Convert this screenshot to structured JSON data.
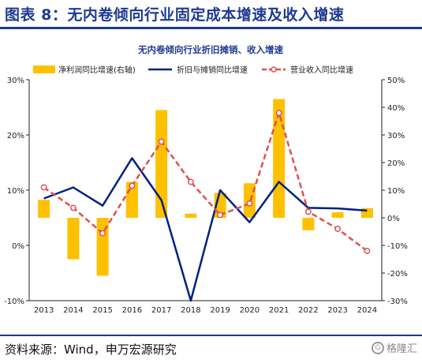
{
  "figure": {
    "title": "图表 8：无内卷倾向行业固定成本增速及收入增速",
    "source": "资料来源：Wind，申万宏源研究",
    "watermark": "格隆汇"
  },
  "colors": {
    "bar": "#FFC000",
    "line": "#002082",
    "dashed": "#E05050",
    "title_blue": "#1F3A93"
  },
  "chart_data": {
    "type": "bar+line",
    "title": "无内卷倾向行业折旧摊销、收入增速",
    "categories": [
      "2013",
      "2014",
      "2015",
      "2016",
      "2017",
      "2018",
      "2019",
      "2020",
      "2021",
      "2022",
      "2023",
      "2024"
    ],
    "left_axis": {
      "ylim": [
        -10,
        30
      ],
      "ticks": [
        "-10%",
        "0%",
        "10%",
        "20%",
        "30%"
      ]
    },
    "right_axis": {
      "ylim": [
        -30,
        50
      ],
      "ticks": [
        "-30%",
        "-20%",
        "-10%",
        "0%",
        "10%",
        "20%",
        "30%",
        "40%",
        "50%"
      ]
    },
    "series": [
      {
        "name": "净利润同比增速(右轴)",
        "kind": "bar",
        "axis": "right",
        "values": [
          6.5,
          -15,
          -21,
          13,
          39,
          1.5,
          9,
          12.5,
          43,
          -4.5,
          2,
          3.5
        ]
      },
      {
        "name": "折旧与摊销同比增速",
        "kind": "line",
        "axis": "left",
        "values": [
          8.5,
          10.5,
          7.2,
          15.8,
          8.2,
          -10.0,
          10.0,
          4.2,
          11.5,
          6.8,
          6.7,
          6.3
        ]
      },
      {
        "name": "营业收入同比增速",
        "kind": "dashed-line",
        "axis": "left",
        "values": [
          10.5,
          6.8,
          2.2,
          10.8,
          18.8,
          11.5,
          5.5,
          7.6,
          24.0,
          6.1,
          3.0,
          -1.0
        ]
      }
    ]
  }
}
